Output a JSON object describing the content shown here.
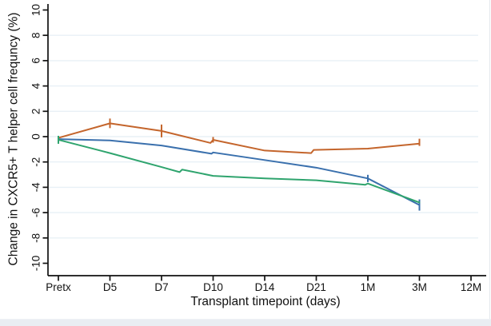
{
  "chart_data": {
    "type": "line",
    "title": "",
    "ylabel": "Change in CXCR5+ T helper cell frequncy (%)",
    "xlabel": "Transplant timepoint (days)",
    "categories": [
      "Pretx",
      "D5",
      "D7",
      "D10",
      "D14",
      "D21",
      "1M",
      "3M",
      "12M"
    ],
    "ylim": [
      -10,
      10
    ],
    "ytick_step": 2,
    "yticks": [
      10,
      8,
      6,
      4,
      2,
      0,
      -2,
      -4,
      -6,
      -8,
      -10
    ],
    "grid_values": [
      8,
      6,
      4,
      2,
      0,
      -2,
      -4,
      -6,
      -8
    ],
    "grid_on": true,
    "legend": "none",
    "note": "series values end at 3M; no data at 12M; small vertical cap marks on lines",
    "series": [
      {
        "name": "series-orange",
        "color": "#c4652c",
        "points": [
          {
            "t": 0,
            "v": -0.1
          },
          {
            "t": 1,
            "v": 1.05
          },
          {
            "t": 2,
            "v": 0.45
          },
          {
            "t": 2.95,
            "v": -0.5
          },
          {
            "t": 3,
            "v": -0.25
          },
          {
            "t": 4,
            "v": -1.1
          },
          {
            "t": 4.9,
            "v": -1.3
          },
          {
            "t": 4.95,
            "v": -1.05
          },
          {
            "t": 6,
            "v": -0.95
          },
          {
            "t": 7,
            "v": -0.55
          }
        ],
        "caps": [
          {
            "t": 1,
            "v": 1.05,
            "h": 12
          },
          {
            "t": 2,
            "v": 0.45,
            "h": 16
          },
          {
            "t": 3,
            "v": -0.25,
            "h": 7
          },
          {
            "t": 7,
            "v": -0.45,
            "h": 9
          }
        ]
      },
      {
        "name": "series-blue",
        "color": "#3a70ad",
        "points": [
          {
            "t": 0,
            "v": -0.2
          },
          {
            "t": 1,
            "v": -0.3
          },
          {
            "t": 2,
            "v": -0.7
          },
          {
            "t": 2.97,
            "v": -1.35
          },
          {
            "t": 3,
            "v": -1.25
          },
          {
            "t": 4,
            "v": -1.85
          },
          {
            "t": 5,
            "v": -2.45
          },
          {
            "t": 6,
            "v": -3.3
          },
          {
            "t": 7,
            "v": -5.4
          }
        ],
        "caps": [
          {
            "t": 6,
            "v": -3.3,
            "h": 9
          },
          {
            "t": 7,
            "v": -5.4,
            "h": 14
          }
        ]
      },
      {
        "name": "series-green",
        "color": "#2fa46e",
        "points": [
          {
            "t": 0,
            "v": -0.25
          },
          {
            "t": 1,
            "v": -1.3
          },
          {
            "t": 2,
            "v": -2.4
          },
          {
            "t": 2.35,
            "v": -2.8
          },
          {
            "t": 2.4,
            "v": -2.6
          },
          {
            "t": 3,
            "v": -3.1
          },
          {
            "t": 4,
            "v": -3.3
          },
          {
            "t": 5,
            "v": -3.45
          },
          {
            "t": 5.95,
            "v": -3.8
          },
          {
            "t": 6,
            "v": -3.7
          },
          {
            "t": 7,
            "v": -5.2
          }
        ],
        "caps": [
          {
            "t": 0,
            "v": -0.25,
            "h": 10
          }
        ]
      }
    ]
  },
  "colors": {
    "grid": "#e8f0f6",
    "axis": "#111111",
    "bottom_strip": "#e9edf2",
    "right_edge": "#e3e7ec"
  }
}
